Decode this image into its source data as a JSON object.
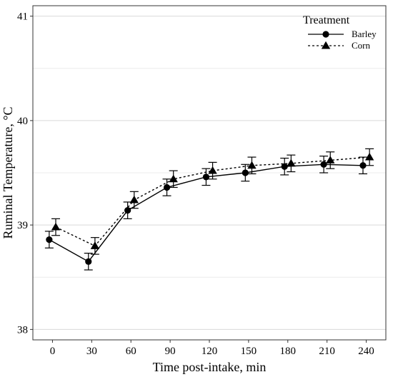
{
  "chart_data": {
    "type": "line",
    "title": "",
    "xlabel": "Time post-intake, min",
    "ylabel": "Ruminal Temperature, °C",
    "x": [
      0,
      30,
      60,
      90,
      120,
      150,
      180,
      210,
      240
    ],
    "xlim": [
      -15,
      255
    ],
    "ylim": [
      37.9,
      41.1
    ],
    "xticks": [
      "0",
      "30",
      "60",
      "90",
      "120",
      "150",
      "180",
      "210",
      "240"
    ],
    "yticks": [
      "38",
      "39",
      "40",
      "41"
    ],
    "ytick_values": [
      38,
      39,
      40,
      41
    ],
    "grid": true,
    "legend": {
      "title": "Treatment",
      "placement": "top-right"
    },
    "series": [
      {
        "name": "Barley",
        "marker": "circle",
        "line_style": "solid",
        "color": "#000000",
        "x_offset": -2.5,
        "values": [
          38.86,
          38.65,
          39.14,
          39.36,
          39.46,
          39.5,
          39.56,
          39.58,
          39.57
        ],
        "error": [
          0.08,
          0.08,
          0.08,
          0.08,
          0.08,
          0.08,
          0.08,
          0.08,
          0.08
        ]
      },
      {
        "name": "Corn",
        "marker": "triangle",
        "line_style": "dashed",
        "color": "#000000",
        "x_offset": 2.5,
        "values": [
          38.98,
          38.8,
          39.24,
          39.44,
          39.52,
          39.57,
          39.59,
          39.62,
          39.65
        ],
        "error": [
          0.08,
          0.08,
          0.08,
          0.08,
          0.08,
          0.08,
          0.08,
          0.08,
          0.08
        ]
      }
    ]
  }
}
